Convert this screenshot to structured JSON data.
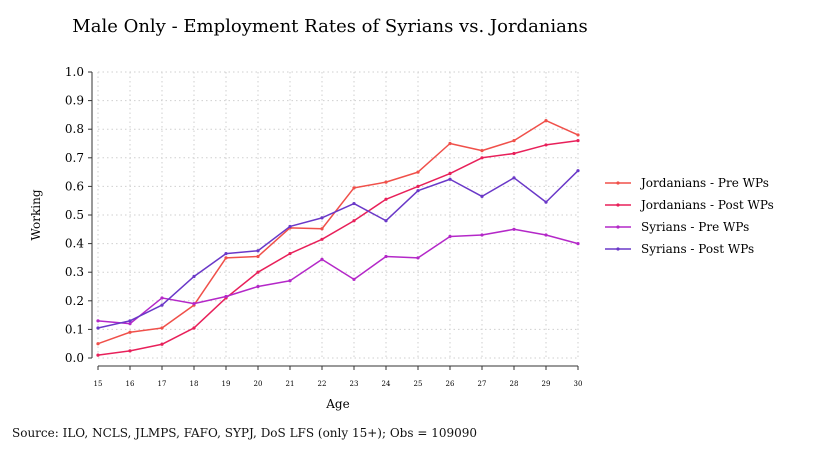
{
  "chart_data": {
    "type": "line",
    "title": "Male Only - Employment Rates of Syrians vs. Jordanians",
    "xlabel": "Age",
    "ylabel": "Working",
    "x": [
      15,
      16,
      17,
      18,
      19,
      20,
      21,
      22,
      23,
      24,
      25,
      26,
      27,
      28,
      29,
      30
    ],
    "xlim": [
      15,
      30
    ],
    "ylim": [
      0,
      1
    ],
    "yticks": [
      0.0,
      0.1,
      0.2,
      0.3,
      0.4,
      0.5,
      0.6,
      0.7,
      0.8,
      0.9,
      1.0
    ],
    "ytick_labels": [
      "0.0",
      "0.1",
      "0.2",
      "0.3",
      "0.4",
      "0.5",
      "0.6",
      "0.7",
      "0.8",
      "0.9",
      "1.0"
    ],
    "grid": true,
    "legend_position": "right",
    "series": [
      {
        "name": "Jordanians - Pre WPs",
        "color": "#f0504a",
        "values": [
          0.05,
          0.09,
          0.105,
          0.185,
          0.35,
          0.355,
          0.455,
          0.452,
          0.595,
          0.615,
          0.65,
          0.75,
          0.725,
          0.76,
          0.83,
          0.78
        ]
      },
      {
        "name": "Jordanians - Post WPs",
        "color": "#e8205a",
        "values": [
          0.01,
          0.025,
          0.048,
          0.105,
          0.21,
          0.3,
          0.365,
          0.415,
          0.48,
          0.555,
          0.6,
          0.645,
          0.7,
          0.715,
          0.745,
          0.76
        ]
      },
      {
        "name": "Syrians - Pre WPs",
        "color": "#b428c8",
        "values": [
          0.13,
          0.12,
          0.21,
          0.19,
          0.215,
          0.25,
          0.27,
          0.345,
          0.275,
          0.355,
          0.35,
          0.425,
          0.43,
          0.45,
          0.43,
          0.4
        ]
      },
      {
        "name": "Syrians - Post WPs",
        "color": "#6a38c8",
        "values": [
          0.105,
          0.13,
          0.185,
          0.285,
          0.365,
          0.375,
          0.46,
          0.49,
          0.54,
          0.48,
          0.585,
          0.625,
          0.565,
          0.63,
          0.545,
          0.655
        ]
      }
    ]
  },
  "footer": {
    "source": "Source: ILO, NCLS, JLMPS, FAFO, SYPJ, DoS LFS (only 15+); Obs = 109090"
  }
}
